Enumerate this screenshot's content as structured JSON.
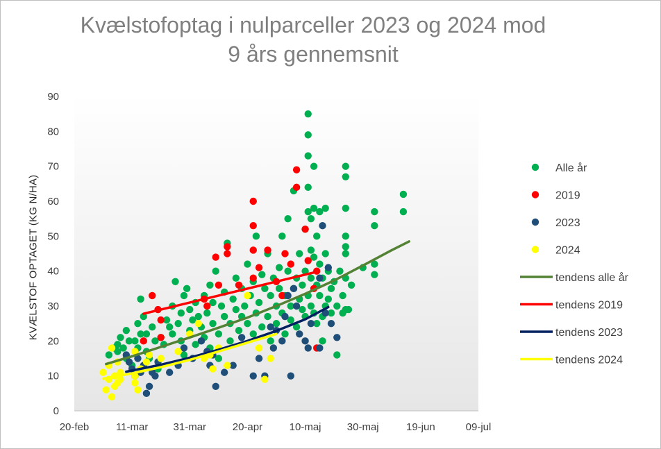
{
  "chart_data": {
    "type": "scatter",
    "title_lines": [
      "Kvælstofoptag  i nulparceller  2023 og 2024 mod",
      "9 års gennemsnit"
    ],
    "ylabel": "KVÆLSTOF OPTAGET (KG N/HA)",
    "xlabel": "",
    "x_unit": "days since 20-feb",
    "xlim": [
      0,
      140
    ],
    "ylim": [
      0,
      90
    ],
    "y_ticks": [
      0,
      10,
      20,
      30,
      40,
      50,
      60,
      70,
      80,
      90
    ],
    "x_ticks": [
      {
        "pos": 0,
        "label": "20-feb"
      },
      {
        "pos": 20,
        "label": "11-mar"
      },
      {
        "pos": 40,
        "label": "31-mar"
      },
      {
        "pos": 60,
        "label": "20-apr"
      },
      {
        "pos": 80,
        "label": "10-maj"
      },
      {
        "pos": 100,
        "label": "30-maj"
      },
      {
        "pos": 120,
        "label": "19-jun"
      },
      {
        "pos": 140,
        "label": "09-jul"
      }
    ],
    "grid": false,
    "legend_position": "right",
    "series": [
      {
        "name": "Alle år",
        "kind": "scatter",
        "color": "#00b050",
        "points": [
          [
            12,
            16
          ],
          [
            14,
            18
          ],
          [
            15,
            17
          ],
          [
            15,
            19
          ],
          [
            16,
            21
          ],
          [
            17,
            18
          ],
          [
            18,
            23
          ],
          [
            18,
            15
          ],
          [
            19,
            20
          ],
          [
            20,
            13
          ],
          [
            21,
            20
          ],
          [
            22,
            18
          ],
          [
            22,
            25
          ],
          [
            23,
            22
          ],
          [
            23,
            32
          ],
          [
            24,
            27
          ],
          [
            25,
            22
          ],
          [
            25,
            17
          ],
          [
            26,
            15
          ],
          [
            27,
            24
          ],
          [
            28,
            20
          ],
          [
            29,
            12
          ],
          [
            30,
            21
          ],
          [
            31,
            19
          ],
          [
            32,
            26
          ],
          [
            33,
            24
          ],
          [
            34,
            30
          ],
          [
            34,
            22
          ],
          [
            35,
            37
          ],
          [
            36,
            25
          ],
          [
            37,
            20
          ],
          [
            37,
            28
          ],
          [
            38,
            33
          ],
          [
            38,
            16
          ],
          [
            39,
            35
          ],
          [
            40,
            29
          ],
          [
            40,
            23
          ],
          [
            41,
            26
          ],
          [
            42,
            31
          ],
          [
            42,
            19
          ],
          [
            43,
            27
          ],
          [
            44,
            24
          ],
          [
            45,
            21
          ],
          [
            45,
            33
          ],
          [
            46,
            28
          ],
          [
            47,
            36
          ],
          [
            47,
            18
          ],
          [
            48,
            31
          ],
          [
            48,
            25
          ],
          [
            49,
            40
          ],
          [
            50,
            22
          ],
          [
            50,
            15
          ],
          [
            51,
            30
          ],
          [
            52,
            27
          ],
          [
            52,
            34
          ],
          [
            53,
            48
          ],
          [
            54,
            25
          ],
          [
            54,
            20
          ],
          [
            55,
            32
          ],
          [
            56,
            29
          ],
          [
            56,
            38
          ],
          [
            57,
            23
          ],
          [
            58,
            35
          ],
          [
            58,
            27
          ],
          [
            59,
            30
          ],
          [
            60,
            42
          ],
          [
            60,
            25
          ],
          [
            61,
            33
          ],
          [
            62,
            22
          ],
          [
            62,
            37
          ],
          [
            63,
            50
          ],
          [
            63,
            28
          ],
          [
            64,
            31
          ],
          [
            65,
            24
          ],
          [
            65,
            39
          ],
          [
            66,
            35
          ],
          [
            67,
            27
          ],
          [
            67,
            45
          ],
          [
            68,
            33
          ],
          [
            68,
            20
          ],
          [
            69,
            38
          ],
          [
            70,
            30
          ],
          [
            70,
            25
          ],
          [
            71,
            41
          ],
          [
            71,
            35
          ],
          [
            72,
            28
          ],
          [
            72,
            50
          ],
          [
            73,
            33
          ],
          [
            73,
            22
          ],
          [
            74,
            40
          ],
          [
            74,
            55
          ],
          [
            75,
            30
          ],
          [
            75,
            26
          ],
          [
            76,
            63
          ],
          [
            76,
            35
          ],
          [
            77,
            38
          ],
          [
            77,
            24
          ],
          [
            78,
            45
          ],
          [
            78,
            32
          ],
          [
            79,
            29
          ],
          [
            79,
            36
          ],
          [
            80,
            52
          ],
          [
            80,
            40
          ],
          [
            80,
            27
          ],
          [
            81,
            85
          ],
          [
            81,
            73
          ],
          [
            81,
            79
          ],
          [
            81,
            64
          ],
          [
            81,
            57
          ],
          [
            81,
            33
          ],
          [
            82,
            55
          ],
          [
            82,
            46
          ],
          [
            82,
            38
          ],
          [
            82,
            30
          ],
          [
            83,
            70
          ],
          [
            83,
            58
          ],
          [
            83,
            44
          ],
          [
            83,
            28
          ],
          [
            84,
            50
          ],
          [
            84,
            36
          ],
          [
            84,
            25
          ],
          [
            85,
            57
          ],
          [
            85,
            42
          ],
          [
            85,
            33
          ],
          [
            86,
            38
          ],
          [
            86,
            27
          ],
          [
            86,
            20
          ],
          [
            87,
            58
          ],
          [
            87,
            45
          ],
          [
            87,
            30
          ],
          [
            88,
            40
          ],
          [
            88,
            32
          ],
          [
            89,
            35
          ],
          [
            89,
            28
          ],
          [
            90,
            37
          ],
          [
            91,
            30
          ],
          [
            91,
            16
          ],
          [
            92,
            40
          ],
          [
            93,
            33
          ],
          [
            93,
            28
          ],
          [
            94,
            70
          ],
          [
            94,
            67
          ],
          [
            94,
            58
          ],
          [
            94,
            50
          ],
          [
            94,
            47
          ],
          [
            94,
            45
          ],
          [
            94,
            38
          ],
          [
            94,
            29
          ],
          [
            95,
            29
          ],
          [
            96,
            36
          ],
          [
            100,
            41
          ],
          [
            104,
            57
          ],
          [
            104,
            53
          ],
          [
            104,
            42
          ],
          [
            104,
            39
          ],
          [
            114,
            62
          ],
          [
            114,
            57
          ]
        ]
      },
      {
        "name": "2019",
        "kind": "scatter",
        "color": "#ff0000",
        "points": [
          [
            24,
            20
          ],
          [
            27,
            33
          ],
          [
            29,
            29
          ],
          [
            30,
            26
          ],
          [
            30,
            21
          ],
          [
            45,
            32
          ],
          [
            46,
            30
          ],
          [
            49,
            44
          ],
          [
            50,
            36
          ],
          [
            53,
            47
          ],
          [
            53,
            45
          ],
          [
            57,
            36
          ],
          [
            62,
            60
          ],
          [
            62,
            53
          ],
          [
            62,
            46
          ],
          [
            62,
            38
          ],
          [
            64,
            41
          ],
          [
            67,
            46
          ],
          [
            70,
            37
          ],
          [
            72,
            33
          ],
          [
            73,
            45
          ],
          [
            75,
            42
          ],
          [
            77,
            69
          ],
          [
            77,
            64
          ],
          [
            80,
            52
          ],
          [
            81,
            43
          ],
          [
            84,
            40
          ],
          [
            83,
            35
          ],
          [
            84,
            18
          ]
        ]
      },
      {
        "name": "2023",
        "kind": "scatter",
        "color": "#1f4e79",
        "points": [
          [
            18,
            16
          ],
          [
            19,
            14
          ],
          [
            20,
            12
          ],
          [
            21,
            10
          ],
          [
            22,
            15
          ],
          [
            23,
            11
          ],
          [
            24,
            13
          ],
          [
            25,
            5
          ],
          [
            26,
            7
          ],
          [
            27,
            11
          ],
          [
            28,
            10
          ],
          [
            29,
            14
          ],
          [
            33,
            11
          ],
          [
            36,
            13
          ],
          [
            38,
            18
          ],
          [
            41,
            15
          ],
          [
            44,
            20
          ],
          [
            46,
            17
          ],
          [
            47,
            13
          ],
          [
            48,
            16
          ],
          [
            49,
            7
          ],
          [
            52,
            11
          ],
          [
            55,
            13
          ],
          [
            58,
            21
          ],
          [
            62,
            10
          ],
          [
            64,
            15
          ],
          [
            66,
            10
          ],
          [
            68,
            24
          ],
          [
            69,
            18
          ],
          [
            70,
            23
          ],
          [
            72,
            20
          ],
          [
            73,
            27
          ],
          [
            74,
            33
          ],
          [
            75,
            10
          ],
          [
            76,
            35
          ],
          [
            77,
            30
          ],
          [
            78,
            22
          ],
          [
            80,
            20
          ],
          [
            81,
            18
          ],
          [
            82,
            25
          ],
          [
            85,
            38
          ],
          [
            85,
            18
          ],
          [
            86,
            53
          ],
          [
            87,
            28
          ],
          [
            88,
            41
          ],
          [
            89,
            25
          ],
          [
            91,
            21
          ]
        ]
      },
      {
        "name": "2024",
        "kind": "scatter",
        "color": "#ffff00",
        "points": [
          [
            10,
            11
          ],
          [
            11,
            6
          ],
          [
            12,
            13
          ],
          [
            12,
            9
          ],
          [
            13,
            4
          ],
          [
            13,
            18
          ],
          [
            14,
            10
          ],
          [
            14,
            7
          ],
          [
            15,
            14
          ],
          [
            15,
            8
          ],
          [
            16,
            11
          ],
          [
            16,
            9
          ],
          [
            21,
            17
          ],
          [
            21,
            10
          ],
          [
            21,
            8
          ],
          [
            22,
            6
          ],
          [
            23,
            12
          ],
          [
            25,
            14
          ],
          [
            26,
            16
          ],
          [
            30,
            15
          ],
          [
            36,
            17
          ],
          [
            40,
            22
          ],
          [
            43,
            25
          ],
          [
            45,
            15
          ],
          [
            47,
            16
          ],
          [
            48,
            12
          ],
          [
            50,
            18
          ],
          [
            53,
            13
          ],
          [
            60,
            33
          ],
          [
            64,
            18
          ],
          [
            66,
            9
          ],
          [
            68,
            15
          ]
        ]
      },
      {
        "name": "tendens alle år",
        "kind": "line",
        "color": "#548235",
        "x": [
          11,
          20,
          30,
          40,
          50,
          60,
          70,
          80,
          90,
          100,
          110,
          116
        ],
        "y": [
          13.4,
          15.6,
          18.3,
          21.0,
          23.8,
          26.7,
          30.0,
          33.5,
          37.3,
          41.6,
          46.0,
          48.5
        ]
      },
      {
        "name": "tendens 2019",
        "kind": "line",
        "color": "#ff0000",
        "x": [
          24,
          84
        ],
        "y": [
          27.8,
          39.8
        ]
      },
      {
        "name": "tendens 2023",
        "kind": "line",
        "color": "#002060",
        "x": [
          18,
          30,
          40,
          50,
          60,
          70,
          80,
          88
        ],
        "y": [
          11.2,
          13.2,
          15.2,
          17.5,
          20.0,
          22.9,
          26.2,
          29.7
        ]
      },
      {
        "name": "tendens 2024",
        "kind": "line",
        "color": "#ffff00",
        "x": [
          10,
          20,
          30,
          40,
          50,
          60,
          70
        ],
        "y": [
          9.2,
          10.7,
          12.5,
          14.6,
          17.0,
          19.5,
          22.0
        ]
      }
    ]
  }
}
